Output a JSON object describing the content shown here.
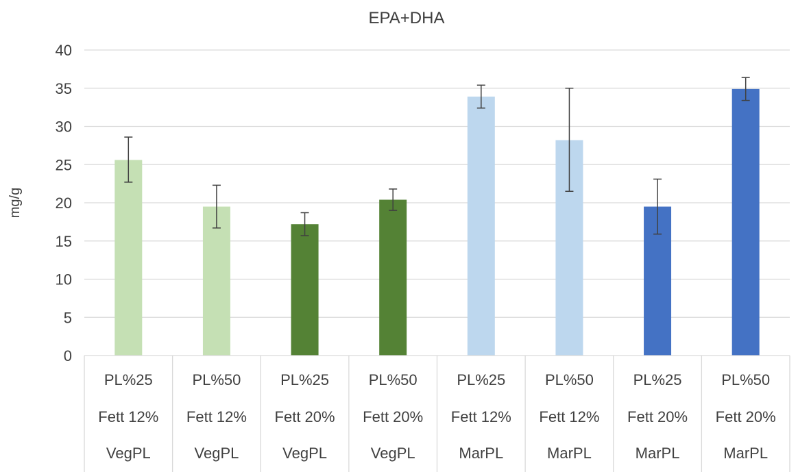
{
  "chart_data": {
    "type": "bar",
    "title": "EPA+DHA",
    "ylabel": "mg/g",
    "xlabel": "",
    "ylim": [
      0,
      40
    ],
    "yticks": [
      0,
      5,
      10,
      15,
      20,
      25,
      30,
      35,
      40
    ],
    "grid": true,
    "legend": "none",
    "categories": [
      [
        "PL%25",
        "Fett 12%",
        "VegPL"
      ],
      [
        "PL%50",
        "Fett 12%",
        "VegPL"
      ],
      [
        "PL%25",
        "Fett 20%",
        "VegPL"
      ],
      [
        "PL%50",
        "Fett 20%",
        "VegPL"
      ],
      [
        "PL%25",
        "Fett 12%",
        "MarPL"
      ],
      [
        "PL%50",
        "Fett 12%",
        "MarPL"
      ],
      [
        "PL%25",
        "Fett 20%",
        "MarPL"
      ],
      [
        "PL%50",
        "Fett 20%",
        "MarPL"
      ]
    ],
    "values": [
      25.6,
      19.5,
      17.2,
      20.4,
      33.9,
      28.2,
      19.5,
      34.9
    ],
    "error_low": [
      22.7,
      16.7,
      15.7,
      19.0,
      32.4,
      21.5,
      15.9,
      33.4
    ],
    "error_high": [
      28.6,
      22.3,
      18.7,
      21.8,
      35.4,
      35.0,
      23.1,
      36.4
    ],
    "colors": [
      "#c5e0b4",
      "#c5e0b4",
      "#548235",
      "#548235",
      "#bdd7ee",
      "#bdd7ee",
      "#4472c4",
      "#4472c4"
    ]
  }
}
